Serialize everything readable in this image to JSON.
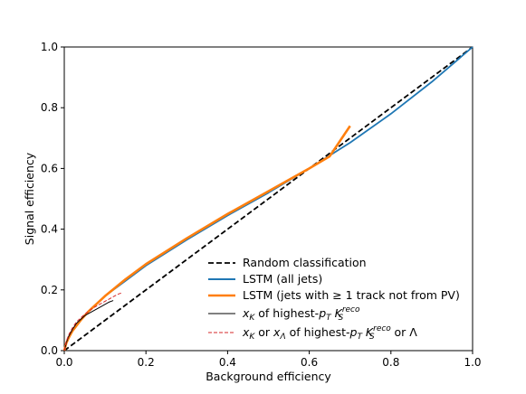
{
  "chart_data": {
    "type": "line",
    "xlabel": "Background efficiency",
    "ylabel": "Signal efficiency",
    "xlim": [
      0.0,
      1.0
    ],
    "ylim": [
      0.0,
      1.0
    ],
    "xticks": [
      "0.0",
      "0.2",
      "0.4",
      "0.6",
      "0.8",
      "1.0"
    ],
    "yticks": [
      "0.0",
      "0.2",
      "0.4",
      "0.6",
      "0.8",
      "1.0"
    ],
    "grid": false,
    "legend_position": "lower-right",
    "series": [
      {
        "name": "Random classification",
        "color": "#000000",
        "style": "dashed",
        "x": [
          0.0,
          1.0
        ],
        "y": [
          0.0,
          1.0
        ]
      },
      {
        "name": "LSTM (all jets)",
        "color": "#1f77b4",
        "style": "solid",
        "x": [
          0.0,
          0.005,
          0.01,
          0.02,
          0.04,
          0.06,
          0.08,
          0.1,
          0.15,
          0.2,
          0.3,
          0.4,
          0.5,
          0.6,
          0.7,
          0.8,
          0.9,
          1.0
        ],
        "y": [
          0.0,
          0.025,
          0.04,
          0.065,
          0.1,
          0.13,
          0.155,
          0.18,
          0.23,
          0.28,
          0.365,
          0.445,
          0.52,
          0.6,
          0.685,
          0.78,
          0.885,
          1.0
        ]
      },
      {
        "name": "LSTM (jets with ≥ 1 track not from PV)",
        "color": "#ff7f0e",
        "style": "solid",
        "x": [
          0.0,
          0.005,
          0.01,
          0.02,
          0.04,
          0.06,
          0.08,
          0.1,
          0.15,
          0.2,
          0.3,
          0.4,
          0.5,
          0.6,
          0.65,
          0.7
        ],
        "y": [
          0.0,
          0.025,
          0.04,
          0.065,
          0.1,
          0.13,
          0.155,
          0.18,
          0.235,
          0.285,
          0.37,
          0.45,
          0.525,
          0.6,
          0.64,
          0.74
        ]
      },
      {
        "name": "x_K of highest-p_T K_S^reco",
        "color": "#000000",
        "style": "solid",
        "x": [
          0.0,
          0.005,
          0.01,
          0.02,
          0.03,
          0.05,
          0.07,
          0.09,
          0.11,
          0.12
        ],
        "y": [
          0.0,
          0.025,
          0.045,
          0.07,
          0.09,
          0.115,
          0.13,
          0.145,
          0.16,
          0.165
        ]
      },
      {
        "name": "x_K or x_Λ of highest-p_T K_S^reco or Λ",
        "color": "#d62728",
        "style": "dashed",
        "x": [
          0.0,
          0.005,
          0.01,
          0.02,
          0.03,
          0.05,
          0.07,
          0.09,
          0.11,
          0.13,
          0.14
        ],
        "y": [
          0.0,
          0.03,
          0.05,
          0.075,
          0.095,
          0.12,
          0.14,
          0.155,
          0.17,
          0.185,
          0.19
        ]
      }
    ]
  },
  "legend": {
    "random": "Random classification",
    "lstm_all": "LSTM (all jets)",
    "lstm_track": "LSTM (jets with ≥ 1 track not from PV)",
    "xk_prefix": "x",
    "xk_sub": "K",
    "xk_mid": " of highest-",
    "pt_p": "p",
    "pt_sub": "T",
    "ks_K": "K",
    "ks_sub": "S",
    "ks_sup": "reco",
    "xl_or": " or ",
    "xl_x": "x",
    "xl_sub": "Λ",
    "xl_tail": " or Λ"
  }
}
